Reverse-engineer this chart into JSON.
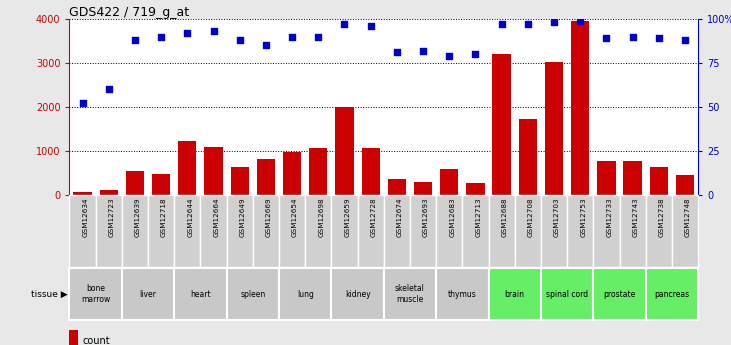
{
  "title": "GDS422 / 719_g_at",
  "gsm_labels": [
    "GSM12634",
    "GSM12723",
    "GSM12639",
    "GSM12718",
    "GSM12644",
    "GSM12664",
    "GSM12649",
    "GSM12669",
    "GSM12654",
    "GSM12698",
    "GSM12659",
    "GSM12728",
    "GSM12674",
    "GSM12693",
    "GSM12683",
    "GSM12713",
    "GSM12688",
    "GSM12708",
    "GSM12703",
    "GSM12753",
    "GSM12733",
    "GSM12743",
    "GSM12738",
    "GSM12748"
  ],
  "counts": [
    60,
    120,
    550,
    470,
    1230,
    1080,
    630,
    820,
    970,
    1060,
    2010,
    1060,
    360,
    290,
    580,
    260,
    3200,
    1730,
    3020,
    3960,
    780,
    760,
    640,
    450
  ],
  "percentiles": [
    52,
    60,
    88,
    90,
    92,
    93,
    88,
    85,
    90,
    90,
    97,
    96,
    81,
    82,
    79,
    80,
    97,
    97,
    98,
    99,
    89,
    90,
    89,
    88
  ],
  "tissues": [
    {
      "label": "bone\nmarrow",
      "start": 0,
      "end": 2,
      "color": "#c8c8c8"
    },
    {
      "label": "liver",
      "start": 2,
      "end": 4,
      "color": "#c8c8c8"
    },
    {
      "label": "heart",
      "start": 4,
      "end": 6,
      "color": "#c8c8c8"
    },
    {
      "label": "spleen",
      "start": 6,
      "end": 8,
      "color": "#c8c8c8"
    },
    {
      "label": "lung",
      "start": 8,
      "end": 10,
      "color": "#c8c8c8"
    },
    {
      "label": "kidney",
      "start": 10,
      "end": 12,
      "color": "#c8c8c8"
    },
    {
      "label": "skeletal\nmuscle",
      "start": 12,
      "end": 14,
      "color": "#c8c8c8"
    },
    {
      "label": "thymus",
      "start": 14,
      "end": 16,
      "color": "#c8c8c8"
    },
    {
      "label": "brain",
      "start": 16,
      "end": 18,
      "color": "#66ee66"
    },
    {
      "label": "spinal cord",
      "start": 18,
      "end": 20,
      "color": "#66ee66"
    },
    {
      "label": "prostate",
      "start": 20,
      "end": 22,
      "color": "#66ee66"
    },
    {
      "label": "pancreas",
      "start": 22,
      "end": 24,
      "color": "#66ee66"
    }
  ],
  "ylim_left": [
    0,
    4000
  ],
  "ylim_right": [
    0,
    100
  ],
  "yticks_left": [
    0,
    1000,
    2000,
    3000,
    4000
  ],
  "yticks_right": [
    0,
    25,
    50,
    75,
    100
  ],
  "bar_color": "#cc0000",
  "dot_color": "#0000cc",
  "background_color": "#e8e8e8",
  "plot_bg": "#ffffff",
  "gsm_bg": "#d0d0d0"
}
